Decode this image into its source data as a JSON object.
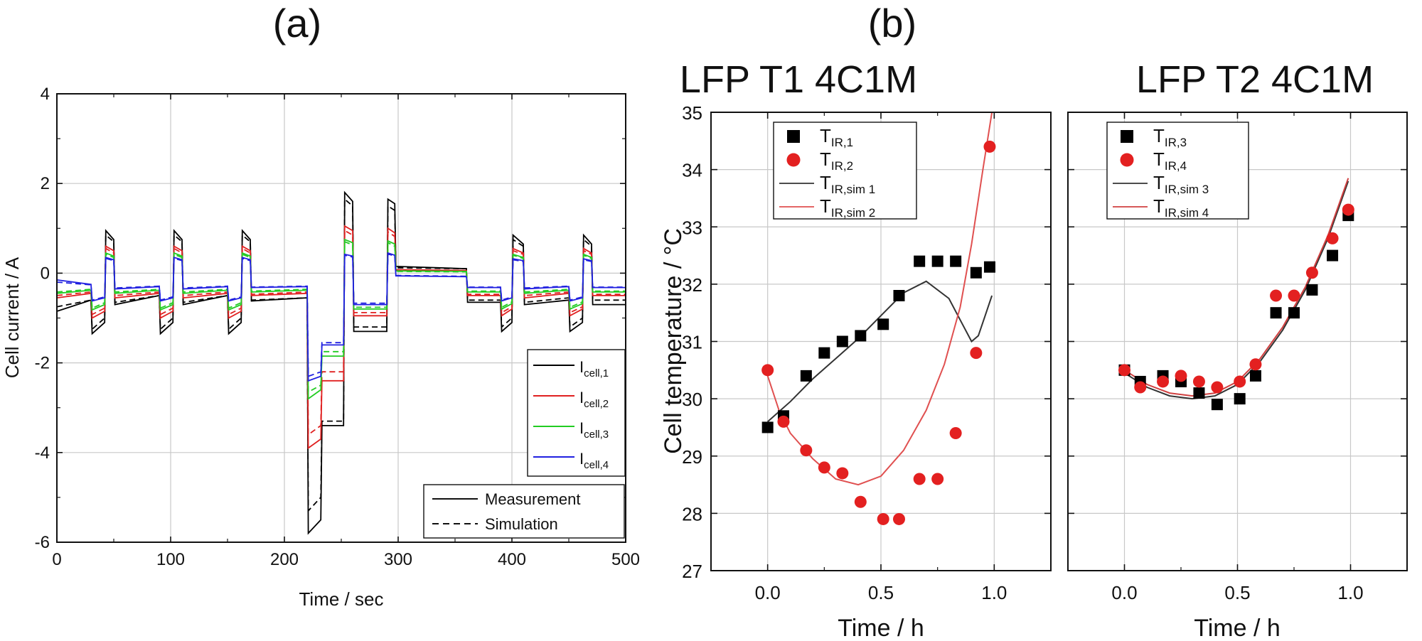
{
  "figure": {
    "label_a": "(a)",
    "label_b": "(b)"
  },
  "chart_data": [
    {
      "id": "a",
      "type": "line",
      "title": "",
      "xlabel": "Time / sec",
      "ylabel": "Cell current / A",
      "xlim": [
        0,
        500
      ],
      "ylim": [
        -6,
        4
      ],
      "xticks": [
        "0",
        "100",
        "200",
        "300",
        "400",
        "500"
      ],
      "yticks": [
        "-6",
        "-4",
        "-2",
        "0",
        "2",
        "4"
      ],
      "grid": true,
      "legend_position": "lower-right",
      "legend": [
        {
          "main": "I",
          "sub": "cell,1",
          "color": "#000000"
        },
        {
          "main": "I",
          "sub": "cell,2",
          "color": "#e02020"
        },
        {
          "main": "I",
          "sub": "cell,3",
          "color": "#22cc22"
        },
        {
          "main": "I",
          "sub": "cell,4",
          "color": "#2020e0"
        }
      ],
      "style_legend": [
        {
          "label": "Measurement",
          "dash": "solid"
        },
        {
          "label": "Simulation",
          "dash": "dashed"
        }
      ],
      "profile": {
        "time": [
          0,
          30,
          31,
          42,
          43,
          50,
          51,
          90,
          91,
          102,
          103,
          110,
          111,
          150,
          151,
          162,
          163,
          170,
          171,
          220,
          221,
          232,
          233,
          252,
          253,
          260,
          261,
          290,
          291,
          297,
          298,
          360,
          361,
          390,
          391,
          400,
          401,
          410,
          411,
          450,
          451,
          462,
          463,
          470,
          471,
          500
        ],
        "series": [
          {
            "name": "I cell,1",
            "color": "#000000",
            "measurement": [
              -0.85,
              -0.6,
              -1.35,
              -1.1,
              0.95,
              0.75,
              -0.7,
              -0.5,
              -1.35,
              -1.1,
              0.95,
              0.75,
              -0.7,
              -0.5,
              -1.35,
              -1.1,
              0.95,
              0.75,
              -0.62,
              -0.55,
              -5.8,
              -5.5,
              -3.4,
              -3.4,
              1.8,
              1.6,
              -1.3,
              -1.3,
              1.65,
              1.55,
              0.15,
              0.1,
              -0.65,
              -0.65,
              -1.3,
              -1.1,
              0.85,
              0.65,
              -0.7,
              -0.6,
              -1.3,
              -1.1,
              0.85,
              0.65,
              -0.7,
              -0.7
            ],
            "simulation": [
              -0.75,
              -0.6,
              -1.25,
              -1.0,
              0.85,
              0.7,
              -0.65,
              -0.5,
              -1.25,
              -1.0,
              0.85,
              0.7,
              -0.65,
              -0.5,
              -1.25,
              -1.0,
              0.85,
              0.7,
              -0.6,
              -0.55,
              -5.3,
              -5.0,
              -3.3,
              -3.3,
              1.65,
              1.5,
              -1.2,
              -1.2,
              1.5,
              1.4,
              0.12,
              0.1,
              -0.6,
              -0.6,
              -1.2,
              -1.0,
              0.75,
              0.6,
              -0.65,
              -0.55,
              -1.2,
              -1.0,
              0.75,
              0.6,
              -0.6,
              -0.6
            ]
          },
          {
            "name": "I cell,2",
            "color": "#e02020",
            "measurement": [
              -0.55,
              -0.45,
              -1.0,
              -0.85,
              0.6,
              0.5,
              -0.55,
              -0.45,
              -1.0,
              -0.85,
              0.6,
              0.5,
              -0.55,
              -0.45,
              -1.0,
              -0.85,
              0.6,
              0.5,
              -0.5,
              -0.45,
              -3.9,
              -3.7,
              -2.4,
              -2.4,
              1.05,
              0.95,
              -0.95,
              -0.95,
              1.0,
              0.9,
              0.08,
              0.06,
              -0.5,
              -0.5,
              -0.95,
              -0.8,
              0.55,
              0.45,
              -0.55,
              -0.45,
              -0.95,
              -0.8,
              0.55,
              0.45,
              -0.5,
              -0.5
            ],
            "simulation": [
              -0.5,
              -0.42,
              -0.92,
              -0.78,
              0.55,
              0.45,
              -0.5,
              -0.42,
              -0.92,
              -0.78,
              0.55,
              0.45,
              -0.5,
              -0.42,
              -0.92,
              -0.78,
              0.55,
              0.45,
              -0.47,
              -0.42,
              -3.6,
              -3.4,
              -2.2,
              -2.2,
              0.95,
              0.85,
              -0.88,
              -0.88,
              0.92,
              0.82,
              0.07,
              0.05,
              -0.47,
              -0.47,
              -0.88,
              -0.75,
              0.5,
              0.42,
              -0.5,
              -0.42,
              -0.88,
              -0.75,
              0.5,
              0.42,
              -0.47,
              -0.47
            ]
          },
          {
            "name": "I cell,3",
            "color": "#22cc22",
            "measurement": [
              -0.45,
              -0.38,
              -0.82,
              -0.7,
              0.45,
              0.38,
              -0.45,
              -0.38,
              -0.82,
              -0.7,
              0.45,
              0.38,
              -0.45,
              -0.38,
              -0.82,
              -0.7,
              0.45,
              0.38,
              -0.42,
              -0.38,
              -2.8,
              -2.6,
              -1.85,
              -1.85,
              0.75,
              0.68,
              -0.8,
              -0.8,
              0.72,
              0.65,
              0.05,
              0.04,
              -0.42,
              -0.42,
              -0.8,
              -0.68,
              0.42,
              0.35,
              -0.45,
              -0.38,
              -0.8,
              -0.68,
              0.42,
              0.35,
              -0.42,
              -0.42
            ],
            "simulation": [
              -0.42,
              -0.36,
              -0.78,
              -0.66,
              0.42,
              0.35,
              -0.42,
              -0.36,
              -0.78,
              -0.66,
              0.42,
              0.35,
              -0.42,
              -0.36,
              -0.78,
              -0.66,
              0.42,
              0.35,
              -0.4,
              -0.36,
              -2.65,
              -2.5,
              -1.75,
              -1.75,
              0.7,
              0.63,
              -0.76,
              -0.76,
              0.68,
              0.6,
              0.04,
              0.03,
              -0.4,
              -0.4,
              -0.76,
              -0.64,
              0.4,
              0.33,
              -0.42,
              -0.36,
              -0.76,
              -0.64,
              0.4,
              0.33,
              -0.4,
              -0.4
            ]
          },
          {
            "name": "I cell,4",
            "color": "#2020e0",
            "measurement": [
              -0.15,
              -0.25,
              -0.62,
              -0.55,
              0.35,
              0.3,
              -0.35,
              -0.3,
              -0.62,
              -0.55,
              0.35,
              0.3,
              -0.35,
              -0.3,
              -0.62,
              -0.55,
              0.35,
              0.3,
              -0.32,
              -0.3,
              -2.4,
              -2.3,
              -1.6,
              -1.6,
              0.42,
              0.38,
              -0.7,
              -0.7,
              0.45,
              0.4,
              -0.06,
              -0.08,
              -0.32,
              -0.32,
              -0.62,
              -0.55,
              0.32,
              0.28,
              -0.35,
              -0.3,
              -0.62,
              -0.55,
              0.32,
              0.28,
              -0.32,
              -0.32
            ],
            "simulation": [
              -0.2,
              -0.26,
              -0.6,
              -0.53,
              0.33,
              0.28,
              -0.33,
              -0.29,
              -0.6,
              -0.53,
              0.33,
              0.28,
              -0.33,
              -0.29,
              -0.6,
              -0.53,
              0.33,
              0.28,
              -0.31,
              -0.29,
              -2.3,
              -2.2,
              -1.55,
              -1.55,
              0.4,
              0.36,
              -0.67,
              -0.67,
              0.43,
              0.38,
              -0.05,
              -0.07,
              -0.31,
              -0.31,
              -0.6,
              -0.53,
              0.3,
              0.26,
              -0.33,
              -0.29,
              -0.6,
              -0.53,
              0.3,
              0.26,
              -0.31,
              -0.31
            ]
          }
        ]
      }
    },
    {
      "id": "b1",
      "type": "scatter",
      "title": "LFP T1 4C1M",
      "xlabel": "Time / h",
      "ylabel": "Cell temperature / °C",
      "xlim": [
        -0.25,
        1.25
      ],
      "ylim": [
        27,
        35
      ],
      "xticks": [
        0.0,
        0.5,
        1.0
      ],
      "xtick_labels": [
        "0.0",
        "0.5",
        "1.0"
      ],
      "yticks": [
        27,
        28,
        29,
        30,
        31,
        32,
        33,
        34,
        35
      ],
      "ytick_labels": [
        "27",
        "28",
        "29",
        "30",
        "31",
        "32",
        "33",
        "34",
        "35"
      ],
      "grid": true,
      "legend_position": "top-left",
      "series": [
        {
          "main": "T",
          "sub": "IR,1",
          "kind": "square",
          "color": "#000000",
          "x": [
            0.0,
            0.07,
            0.17,
            0.25,
            0.33,
            0.41,
            0.51,
            0.58,
            0.67,
            0.75,
            0.83,
            0.92,
            0.98
          ],
          "y": [
            29.5,
            29.7,
            30.4,
            30.8,
            31.0,
            31.1,
            31.3,
            31.8,
            32.4,
            32.4,
            32.4,
            32.2,
            32.3
          ]
        },
        {
          "main": "T",
          "sub": "IR,2",
          "kind": "circle",
          "color": "#e32020",
          "x": [
            0.0,
            0.07,
            0.17,
            0.25,
            0.33,
            0.41,
            0.51,
            0.58,
            0.67,
            0.75,
            0.83,
            0.92,
            0.98
          ],
          "y": [
            30.5,
            29.6,
            29.1,
            28.8,
            28.7,
            28.2,
            27.9,
            27.9,
            28.6,
            28.6,
            29.4,
            30.8,
            34.4
          ]
        },
        {
          "main": "T",
          "sub": "IR,sim 1",
          "kind": "line",
          "color": "#333333",
          "x": [
            0.0,
            0.1,
            0.2,
            0.3,
            0.4,
            0.5,
            0.6,
            0.7,
            0.8,
            0.86,
            0.9,
            0.93,
            0.96,
            0.99
          ],
          "y": [
            29.6,
            29.95,
            30.35,
            30.7,
            31.05,
            31.45,
            31.85,
            32.05,
            31.75,
            31.3,
            31.0,
            31.1,
            31.45,
            31.8
          ]
        },
        {
          "main": "T",
          "sub": "IR,sim 2",
          "kind": "line",
          "color": "#e05050",
          "x": [
            0.0,
            0.05,
            0.1,
            0.2,
            0.3,
            0.4,
            0.5,
            0.6,
            0.7,
            0.78,
            0.85,
            0.9,
            0.95,
            0.99
          ],
          "y": [
            30.4,
            29.8,
            29.4,
            28.95,
            28.6,
            28.5,
            28.65,
            29.1,
            29.8,
            30.6,
            31.6,
            32.7,
            34.0,
            35.0
          ]
        }
      ]
    },
    {
      "id": "b2",
      "type": "scatter",
      "title": "LFP T2 4C1M",
      "xlabel": "Time / h",
      "ylabel": "",
      "xlim": [
        -0.25,
        1.25
      ],
      "ylim": [
        27,
        35
      ],
      "xticks": [
        0.0,
        0.5,
        1.0
      ],
      "xtick_labels": [
        "0.0",
        "0.5",
        "1.0"
      ],
      "yticks": [
        27,
        28,
        29,
        30,
        31,
        32,
        33,
        34,
        35
      ],
      "grid": true,
      "legend_position": "top-left",
      "series": [
        {
          "main": "T",
          "sub": "IR,3",
          "kind": "square",
          "color": "#000000",
          "x": [
            0.0,
            0.07,
            0.17,
            0.25,
            0.33,
            0.41,
            0.51,
            0.58,
            0.67,
            0.75,
            0.83,
            0.92,
            0.99
          ],
          "y": [
            30.5,
            30.3,
            30.4,
            30.3,
            30.1,
            29.9,
            30.0,
            30.4,
            31.5,
            31.5,
            31.9,
            32.5,
            33.2
          ]
        },
        {
          "main": "T",
          "sub": "IR,4",
          "kind": "circle",
          "color": "#e32020",
          "x": [
            0.0,
            0.07,
            0.17,
            0.25,
            0.33,
            0.41,
            0.51,
            0.58,
            0.67,
            0.75,
            0.83,
            0.92,
            0.99
          ],
          "y": [
            30.5,
            30.2,
            30.3,
            30.4,
            30.3,
            30.2,
            30.3,
            30.6,
            31.8,
            31.8,
            32.2,
            32.8,
            33.3
          ]
        },
        {
          "main": "T",
          "sub": "IR,sim 3",
          "kind": "line",
          "color": "#333333",
          "x": [
            0.0,
            0.1,
            0.2,
            0.3,
            0.4,
            0.5,
            0.6,
            0.7,
            0.8,
            0.9,
            0.99
          ],
          "y": [
            30.45,
            30.2,
            30.05,
            30.0,
            30.05,
            30.25,
            30.65,
            31.2,
            31.9,
            32.8,
            33.8
          ]
        },
        {
          "main": "T",
          "sub": "IR,sim 4",
          "kind": "line",
          "color": "#d04040",
          "x": [
            0.0,
            0.1,
            0.2,
            0.3,
            0.4,
            0.5,
            0.6,
            0.7,
            0.8,
            0.9,
            0.99
          ],
          "y": [
            30.5,
            30.25,
            30.1,
            30.05,
            30.1,
            30.3,
            30.7,
            31.25,
            31.95,
            32.85,
            33.85
          ]
        }
      ]
    }
  ]
}
